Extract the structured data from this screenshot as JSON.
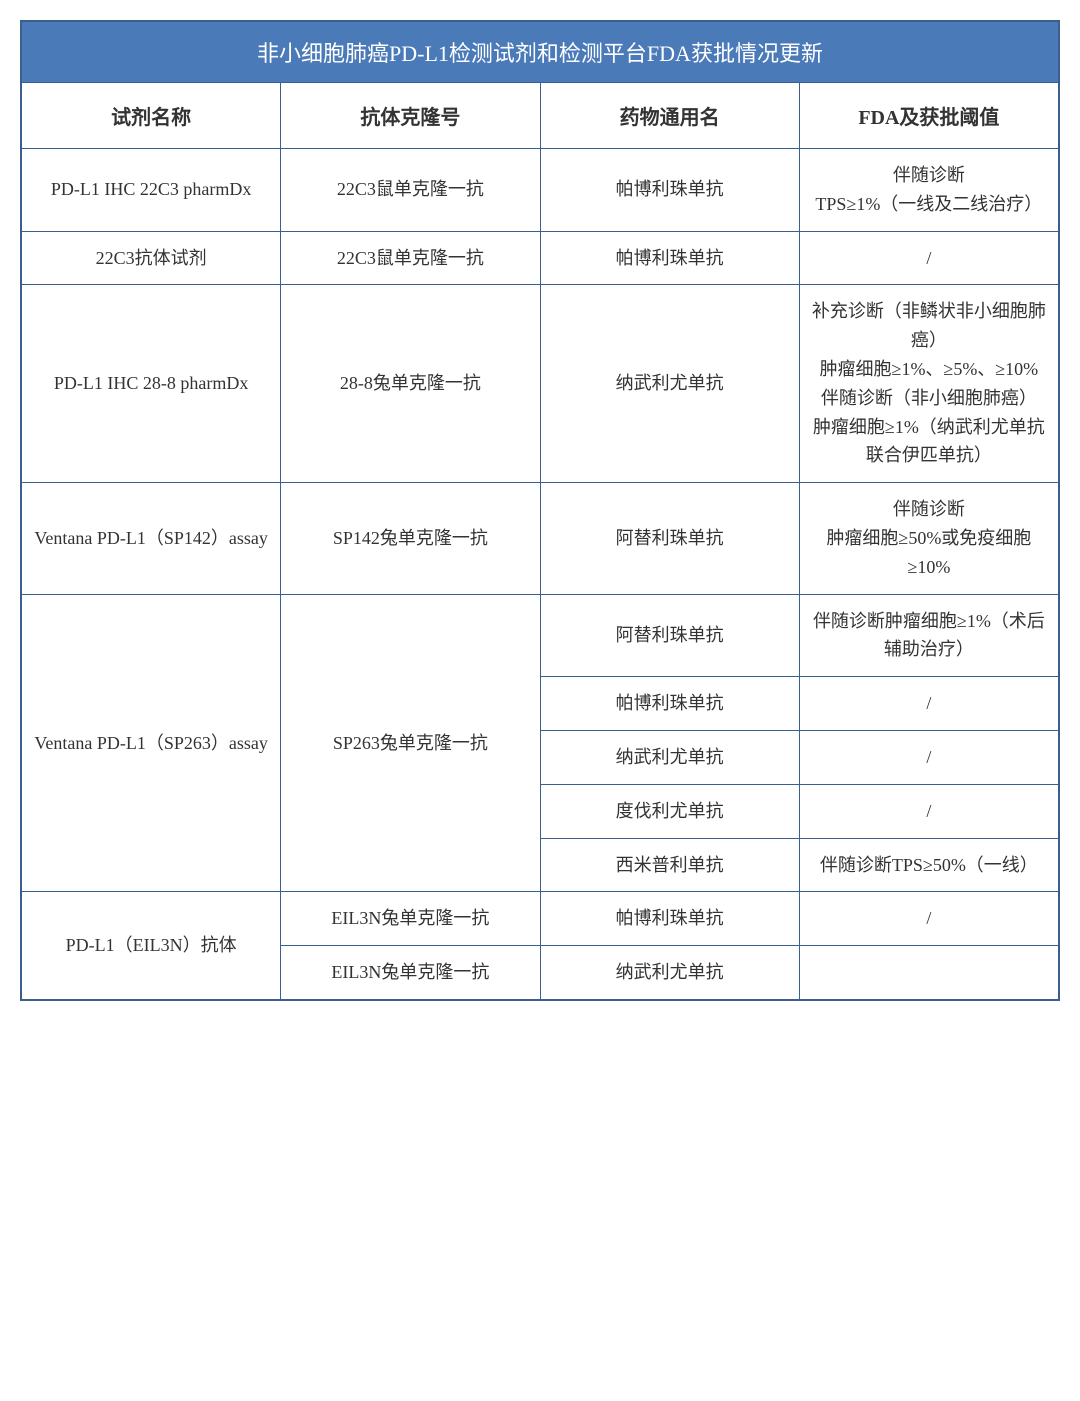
{
  "table": {
    "title": "非小细胞肺癌PD-L1检测试剂和检测平台FDA获批情况更新",
    "title_bg_color": "#4a7ab8",
    "title_text_color": "#ffffff",
    "border_color": "#3a5f8f",
    "cell_bg_color": "#ffffff",
    "cell_text_color": "#333333",
    "title_fontsize": 22,
    "header_fontsize": 20,
    "cell_fontsize": 18,
    "columns": [
      "试剂名称",
      "抗体克隆号",
      "药物通用名",
      "FDA及获批阈值"
    ],
    "column_widths": [
      "25%",
      "25%",
      "25%",
      "25%"
    ],
    "rows": [
      {
        "reagent": "PD-L1 IHC 22C3 pharmDx",
        "clone": "22C3鼠单克隆一抗",
        "drug": "帕博利珠单抗",
        "threshold": "伴随诊断\nTPS≥1%（一线及二线治疗）"
      },
      {
        "reagent": "22C3抗体试剂",
        "clone": "22C3鼠单克隆一抗",
        "drug": "帕博利珠单抗",
        "threshold": "/"
      },
      {
        "reagent": "PD-L1 IHC 28-8 pharmDx",
        "clone": "28-8兔单克隆一抗",
        "drug": "纳武利尤单抗",
        "threshold": "补充诊断（非鳞状非小细胞肺癌）\n肿瘤细胞≥1%、≥5%、≥10%\n伴随诊断（非小细胞肺癌）\n肿瘤细胞≥1%（纳武利尤单抗联合伊匹单抗）"
      },
      {
        "reagent": "Ventana PD-L1（SP142）assay",
        "clone": "SP142兔单克隆一抗",
        "drug": "阿替利珠单抗",
        "threshold": "伴随诊断\n肿瘤细胞≥50%或免疫细胞≥10%"
      },
      {
        "reagent": "Ventana PD-L1（SP263）assay",
        "reagent_rowspan": 5,
        "clone": "SP263兔单克隆一抗",
        "clone_rowspan": 5,
        "subrows": [
          {
            "drug": "阿替利珠单抗",
            "threshold": "伴随诊断肿瘤细胞≥1%（术后辅助治疗）"
          },
          {
            "drug": "帕博利珠单抗",
            "threshold": "/"
          },
          {
            "drug": "纳武利尤单抗",
            "threshold": "/"
          },
          {
            "drug": "度伐利尤单抗",
            "threshold": "/"
          },
          {
            "drug": "西米普利单抗",
            "threshold": "伴随诊断TPS≥50%（一线）"
          }
        ]
      },
      {
        "reagent": "PD-L1（EIL3N）抗体",
        "reagent_rowspan": 2,
        "subrows": [
          {
            "clone": "EIL3N兔单克隆一抗",
            "drug": "帕博利珠单抗",
            "threshold": "/"
          },
          {
            "clone": "EIL3N兔单克隆一抗",
            "drug": "纳武利尤单抗",
            "threshold": ""
          }
        ]
      }
    ]
  }
}
